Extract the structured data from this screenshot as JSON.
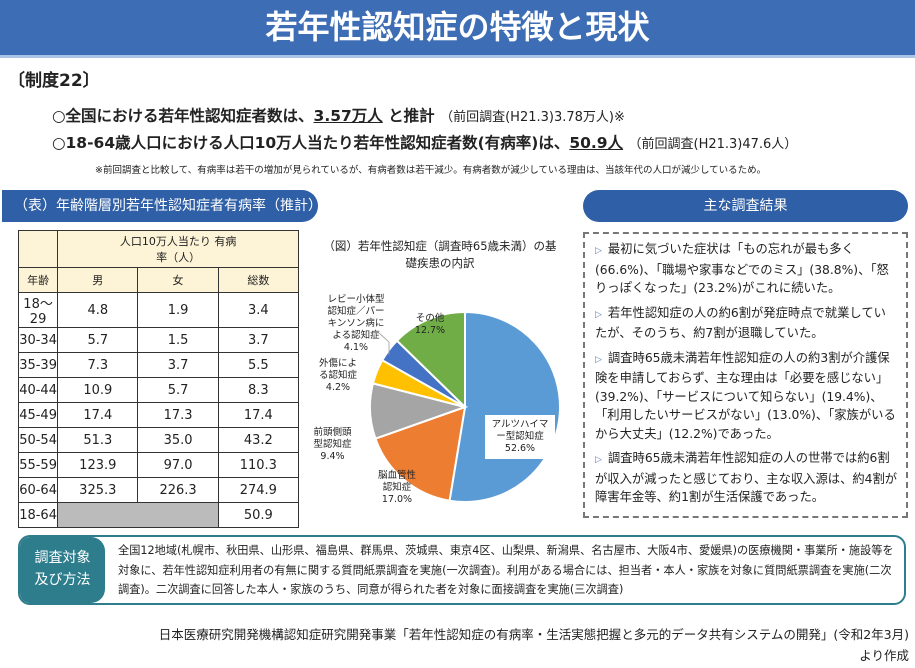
{
  "title": "若年性認知症の特徴と現状",
  "system": "〔制度22〕",
  "bullets": [
    {
      "pre": "○全国における若年性認知症者数は、",
      "value": "3.57万人",
      "post": " と推計",
      "sub": "（前回調査(H21.3)3.78万人)※"
    },
    {
      "pre": "○18-64歳人口における人口10万人当たり若年性認知症者数(有病率)は、",
      "value": "50.9人",
      "post": "",
      "sub": "（前回調査(H21.3)47.6人）"
    }
  ],
  "note": "※前回調査と比較して、有病率は若干の増加が見られているが、有病者数は若干減少。有病者数が減少している理由は、当該年代の人口が減少しているため。",
  "table": {
    "title": "（表）年齢階層別若年性認知症者有病率（推計）",
    "group_header": "人口10万人当たり 有病率（人）",
    "columns": [
      "年齢",
      "男",
      "女",
      "総数"
    ],
    "rows": [
      [
        "18～29",
        "4.8",
        "1.9",
        "3.4"
      ],
      [
        "30-34",
        "5.7",
        "1.5",
        "3.7"
      ],
      [
        "35-39",
        "7.3",
        "3.7",
        "5.5"
      ],
      [
        "40-44",
        "10.9",
        "5.7",
        "8.3"
      ],
      [
        "45-49",
        "17.4",
        "17.3",
        "17.4"
      ],
      [
        "50-54",
        "51.3",
        "35.0",
        "43.2"
      ],
      [
        "55-59",
        "123.9",
        "97.0",
        "110.3"
      ],
      [
        "60-64",
        "325.3",
        "226.3",
        "274.9"
      ],
      [
        "18-64",
        "",
        "",
        "50.9"
      ]
    ]
  },
  "chart_data": {
    "type": "pie",
    "title": "（図）若年性認知症（調査時65歳未満）の基礎疾患の内訳",
    "slices": [
      {
        "label": "アルツハイマー型認知症",
        "value": 52.6,
        "color": "#5b9bd5"
      },
      {
        "label": "脳血管性認知症",
        "value": 17.0,
        "color": "#ed7d31"
      },
      {
        "label": "前頭側頭型認知症",
        "value": 9.4,
        "color": "#a5a5a5"
      },
      {
        "label": "外傷による認知症",
        "value": 4.2,
        "color": "#ffc000"
      },
      {
        "label": "レビー小体型認知症／パーキンソン病による認知症",
        "value": 4.1,
        "color": "#4472c4"
      },
      {
        "label": "その他",
        "value": 12.7,
        "color": "#70ad47"
      }
    ]
  },
  "results": {
    "title": "主な調査結果",
    "items": [
      "最初に気づいた症状は「もの忘れが最も多く(66.6%)、「職場や家事などでのミス」(38.8%)、「怒りっぽくなった」(23.2%)がこれに続いた。",
      "若年性認知症の人の約6割が発症時点で就業していたが、そのうち、約7割が退職していた。",
      "調査時65歳未満若年性認知症の人の約3割が介護保険を申請しておらず、主な理由は「必要を感じない」(39.2%)、「サービスについて知らない」(19.4%)、「利用したいサービスがない」(13.0%)、「家族がいるから大丈夫」(12.2%)であった。",
      "調査時65歳未満若年性認知症の人の世帯では約6割が収入が減ったと感じており、主な収入源は、約4割が障害年金等、約1割が生活保護であった。"
    ]
  },
  "method": {
    "label1": "調査対象",
    "label2": "及び方法",
    "text": "全国12地域(札幌市、秋田県、山形県、福島県、群馬県、茨城県、東京4区、山梨県、新潟県、名古屋市、大阪4市、愛媛県)の医療機関・事業所・施設等を対象に、若年性認知症利用者の有無に関する質問紙票調査を実施(一次調査)。利用がある場合には、担当者・本人・家族を対象に質問紙票調査を実施(二次調査)。二次調査に回答した本人・家族のうち、同意が得られた者を対象に面接調査を実施(三次調査)"
  },
  "footer": {
    "line1": "日本医療研究開発機構認知症研究開発事業「若年性認知症の有病率・生活実態把握と多元的データ共有システムの開発」(令和2年3月)",
    "line2": "より作成"
  }
}
